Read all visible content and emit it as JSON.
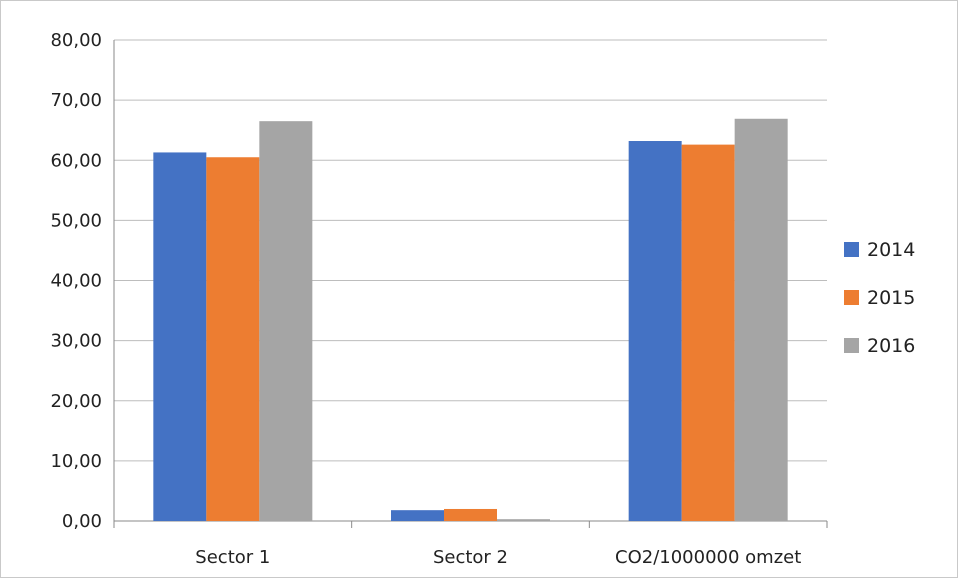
{
  "chart_data": {
    "type": "bar",
    "title": "",
    "xlabel": "",
    "ylabel": "",
    "categories": [
      "Sector 1",
      "Sector 2",
      "CO2/1000000 omzet"
    ],
    "series": [
      {
        "name": "2014",
        "color": "#4472c4",
        "values": [
          61.3,
          1.8,
          63.2
        ]
      },
      {
        "name": "2015",
        "color": "#ed7d31",
        "values": [
          60.5,
          2.0,
          62.6
        ]
      },
      {
        "name": "2016",
        "color": "#a5a5a5",
        "values": [
          66.5,
          0.3,
          66.9
        ]
      }
    ],
    "ylim": [
      0,
      80
    ],
    "yticks": [
      "0,00",
      "10,00",
      "20,00",
      "30,00",
      "40,00",
      "50,00",
      "60,00",
      "70,00",
      "80,00"
    ],
    "grid": true,
    "legend_position": "right"
  }
}
